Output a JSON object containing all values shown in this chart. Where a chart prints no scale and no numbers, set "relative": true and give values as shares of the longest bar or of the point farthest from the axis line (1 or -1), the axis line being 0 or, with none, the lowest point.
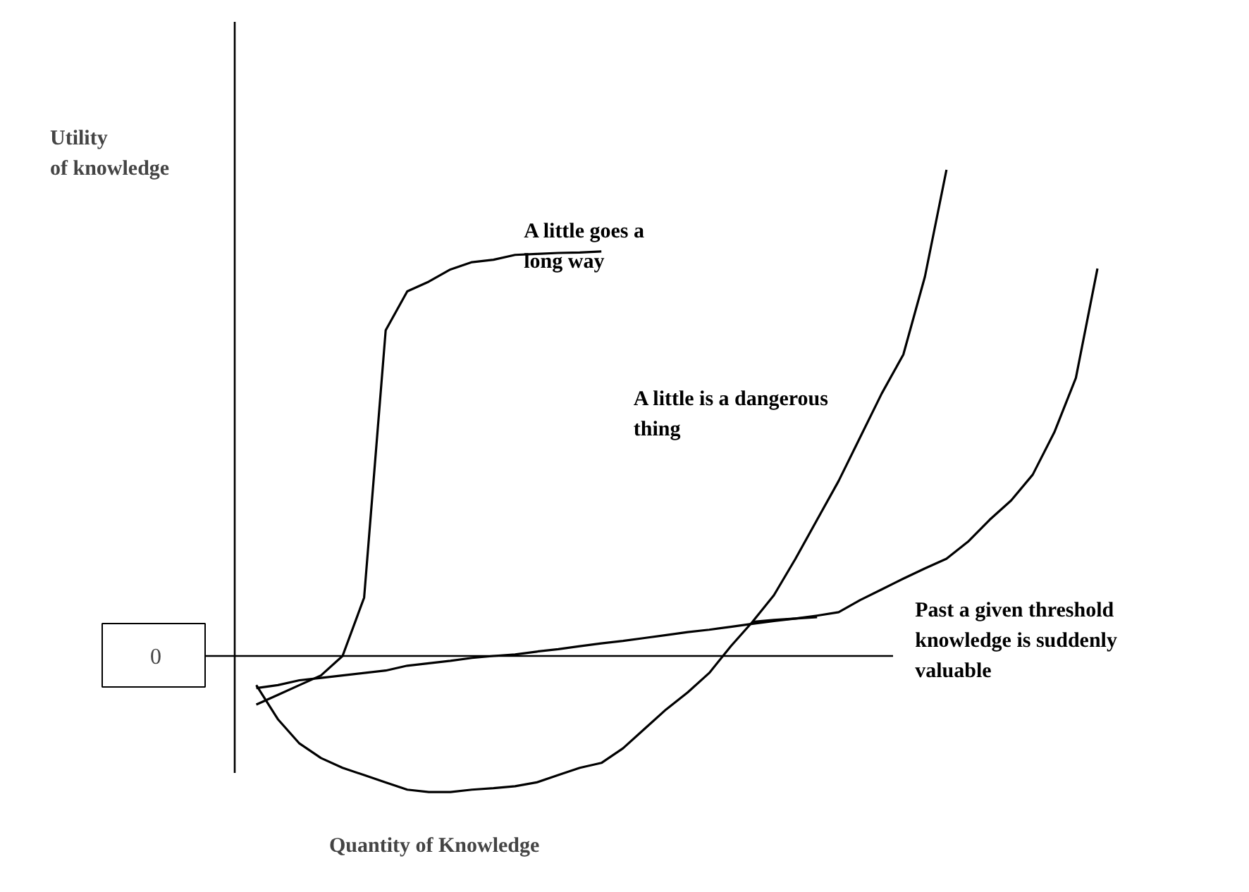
{
  "chart_data": {
    "type": "line",
    "relative": true,
    "xlabel": "Quantity of Knowledge",
    "ylabel": "Utility of knowledge",
    "categories": [
      null,
      null,
      null,
      null,
      null,
      null,
      null,
      null,
      null,
      null,
      null,
      null,
      null,
      null,
      null,
      null,
      null,
      null,
      null,
      null,
      null,
      null,
      null,
      null,
      null,
      null,
      null,
      null,
      null,
      null,
      null,
      null,
      null,
      null,
      null,
      null,
      null,
      null,
      null,
      null,
      null
    ],
    "ref_lines": [
      {
        "axis": "y",
        "value": 0,
        "label": "0",
        "color": "#000000"
      }
    ],
    "series": [
      {
        "name": "A little goes a long way",
        "color": "#000000",
        "values": [
          null,
          -0.1,
          -0.08,
          -0.06,
          -0.04,
          0.0,
          0.12,
          0.67,
          0.75,
          0.77,
          0.795,
          0.81,
          0.815,
          0.825,
          0.827,
          0.829,
          0.83,
          0.832,
          null,
          null,
          null,
          null,
          null,
          null,
          null,
          null,
          null,
          null,
          null,
          null,
          null,
          null,
          null,
          null,
          null,
          null,
          null,
          null,
          null,
          null,
          null
        ]
      },
      {
        "name": "A little is a dangerous thing",
        "color": "#000000",
        "values": [
          null,
          -0.06,
          -0.13,
          -0.18,
          -0.21,
          -0.23,
          -0.245,
          -0.26,
          -0.275,
          -0.28,
          -0.28,
          -0.275,
          -0.272,
          -0.268,
          -0.26,
          -0.245,
          -0.23,
          -0.22,
          -0.19,
          -0.15,
          -0.11,
          -0.075,
          -0.035,
          0.02,
          0.07,
          0.125,
          0.2,
          0.28,
          0.36,
          0.45,
          0.54,
          0.62,
          0.78,
          1.0,
          null,
          null,
          null,
          null,
          null,
          null,
          null
        ]
      },
      {
        "name": "Past a given threshold knowledge is suddenly valuable",
        "color": "#000000",
        "values": [
          null,
          -0.066,
          -0.06,
          -0.05,
          -0.045,
          -0.04,
          -0.035,
          -0.03,
          -0.02,
          -0.015,
          -0.01,
          -0.004,
          0.0,
          0.003,
          0.009,
          0.014,
          0.02,
          0.026,
          0.031,
          0.037,
          0.043,
          0.049,
          0.054,
          0.06,
          0.066,
          0.072,
          0.077,
          0.083,
          0.09,
          0.115,
          0.137,
          0.159,
          0.18,
          0.2,
          0.235,
          0.28,
          0.32,
          0.373,
          0.46,
          0.572,
          0.797
        ]
      },
      {
        "color": "#000000",
        "values": [
          null,
          null,
          null,
          null,
          null,
          null,
          null,
          null,
          null,
          null,
          null,
          null,
          null,
          null,
          null,
          null,
          null,
          null,
          null,
          null,
          null,
          null,
          null,
          null,
          0.07,
          0.074,
          0.077,
          0.08,
          null,
          null,
          null,
          null,
          null,
          null,
          null,
          null,
          null,
          null,
          null,
          null,
          null
        ]
      }
    ]
  }
}
